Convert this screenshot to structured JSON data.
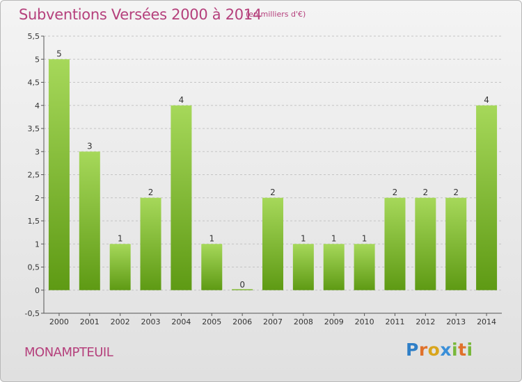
{
  "header": {
    "title": "Subventions Versées 2000 à 2014",
    "unit": "(en milliers d'€)"
  },
  "footer": {
    "commune": "MONAMPTEUIL",
    "logo": {
      "P": "P",
      "r": "r",
      "o": "o",
      "x": "x",
      "i1": "i",
      "t": "t",
      "i2": "i"
    }
  },
  "colors": {
    "title": "#b5407c",
    "bar_top": "#a6d85a",
    "bar_bottom": "#5e9a14",
    "logo_p": "#2f7fc7",
    "logo_r": "#e0712b",
    "logo_o": "#d9a51c",
    "logo_x": "#3a8fd8",
    "logo_i": "#78b83a",
    "logo_t": "#e0712b"
  },
  "chart_data": {
    "type": "bar",
    "categories": [
      "2000",
      "2001",
      "2002",
      "2003",
      "2004",
      "2005",
      "2006",
      "2007",
      "2008",
      "2009",
      "2010",
      "2011",
      "2012",
      "2013",
      "2014"
    ],
    "values": [
      5,
      3,
      1,
      2,
      4,
      1,
      0,
      2,
      1,
      1,
      1,
      2,
      2,
      2,
      4
    ],
    "title": "Subventions Versées 2000 à 2014",
    "ylim": [
      -0.5,
      5.5
    ],
    "yticks": [
      "-0,5",
      "0",
      "0,5",
      "1",
      "1,5",
      "2",
      "2,5",
      "3",
      "3,5",
      "4",
      "4,5",
      "5",
      "5,5"
    ],
    "ytick_values": [
      -0.5,
      0,
      0.5,
      1,
      1.5,
      2,
      2.5,
      3,
      3.5,
      4,
      4.5,
      5,
      5.5
    ],
    "grid": "horizontal dashed"
  }
}
